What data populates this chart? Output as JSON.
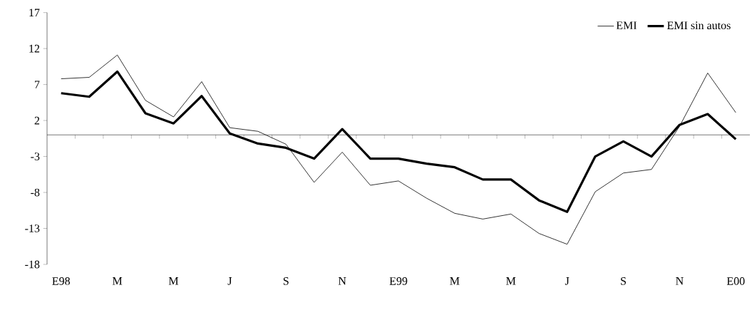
{
  "chart_data": {
    "type": "line",
    "categories": [
      "E98",
      null,
      "M",
      null,
      "M",
      null,
      "J",
      null,
      "S",
      null,
      "N",
      null,
      "E99",
      null,
      "M",
      null,
      "M",
      null,
      "J",
      null,
      "S",
      null,
      "N",
      null,
      "E00"
    ],
    "series": [
      {
        "name": "EMI",
        "color": "#000000",
        "values": [
          7.8,
          8.0,
          11.1,
          4.8,
          2.5,
          7.4,
          1.0,
          0.5,
          -1.3,
          -6.6,
          -2.4,
          -7.0,
          -6.4,
          -8.8,
          -10.9,
          -11.7,
          -11.0,
          -13.7,
          -15.2,
          -7.9,
          -5.3,
          -4.8,
          1.2,
          8.6,
          3.1
        ]
      },
      {
        "name": "EMI sin autos",
        "color": "#000000",
        "values": [
          5.8,
          5.3,
          8.8,
          3.0,
          1.6,
          5.4,
          0.2,
          -1.2,
          -1.8,
          -3.3,
          0.8,
          -3.3,
          -3.3,
          -4.0,
          -4.5,
          -6.2,
          -6.2,
          -9.1,
          -10.7,
          -3.0,
          -0.9,
          -3.0,
          1.4,
          2.9,
          -0.6
        ]
      }
    ],
    "ylim": [
      -18,
      17
    ],
    "yticks": [
      -18,
      -13,
      -8,
      -3,
      2,
      7,
      12,
      17
    ],
    "legend": "top right",
    "marker": "none",
    "line_style": "solid"
  }
}
